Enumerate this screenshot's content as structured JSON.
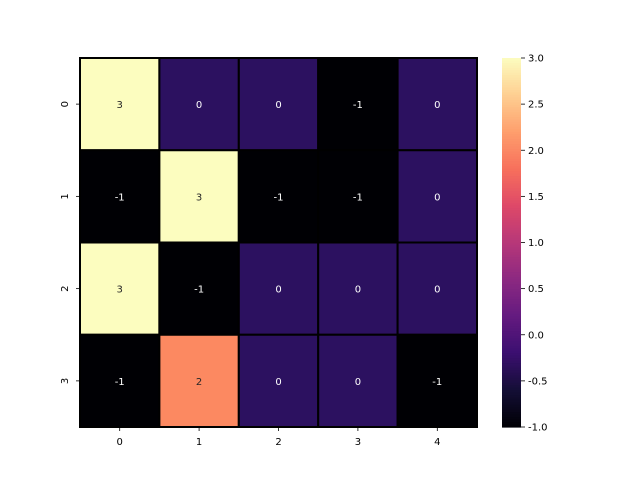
{
  "chart_data": {
    "type": "heatmap",
    "title": "",
    "xlabel": "",
    "ylabel": "",
    "x_labels": [
      "0",
      "1",
      "2",
      "3",
      "4"
    ],
    "y_labels": [
      "0",
      "1",
      "2",
      "3"
    ],
    "values": [
      [
        3,
        0,
        0,
        -1,
        0
      ],
      [
        -1,
        3,
        -1,
        -1,
        0
      ],
      [
        3,
        -1,
        0,
        0,
        0
      ],
      [
        -1,
        2,
        0,
        0,
        -1
      ]
    ],
    "annotations": [
      [
        "3",
        "0",
        "0",
        "-1",
        "0"
      ],
      [
        "-1",
        "3",
        "-1",
        "-1",
        "0"
      ],
      [
        "3",
        "-1",
        "0",
        "0",
        "0"
      ],
      [
        "-1",
        "2",
        "0",
        "0",
        "-1"
      ]
    ],
    "colormap": "magma",
    "vmin": -1.0,
    "vmax": 3.0,
    "colorbar_ticks": [
      "-1.0",
      "-0.5",
      "0.0",
      "0.5",
      "1.0",
      "1.5",
      "2.0",
      "2.5",
      "3.0"
    ],
    "colorbar_position": "right",
    "cell_border_color": "#000000",
    "label_color_dark_cells": "#ffffff",
    "label_color_light_cells": "#262626",
    "colors": {
      "value_-1": "#000004",
      "value_0": "#2c1160",
      "value_2": "#fc8961",
      "value_3": "#fcfdbf"
    }
  }
}
